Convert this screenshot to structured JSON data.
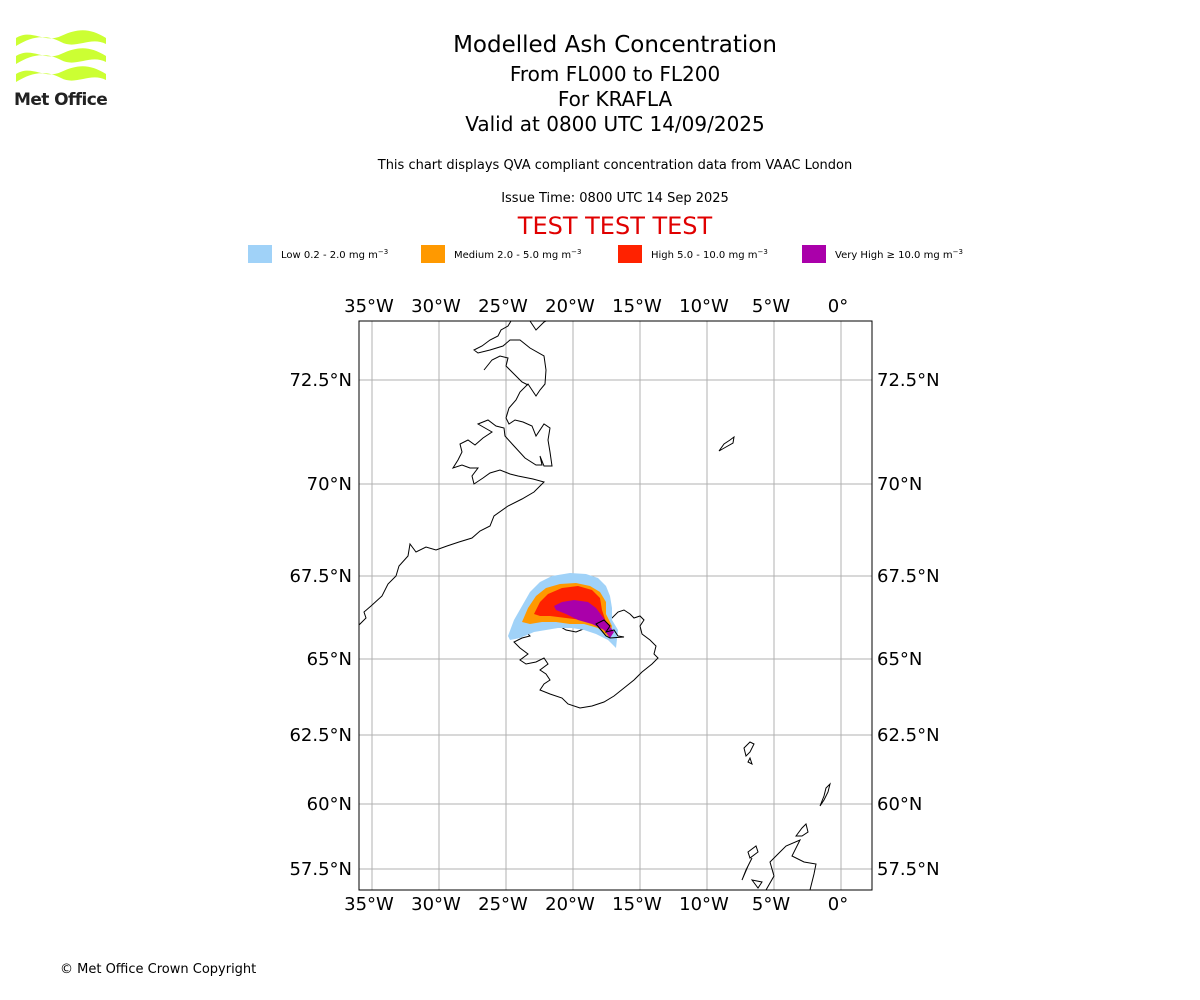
{
  "logo": {
    "text": "Met Office",
    "color": "#ccff33"
  },
  "title": {
    "main": "Modelled Ash Concentration",
    "levels": "From FL000 to FL200",
    "volcano": "For KRAFLA",
    "valid": "Valid at 0800 UTC 14/09/2025"
  },
  "description": "This chart displays QVA compliant concentration data from VAAC London",
  "issue_time": "Issue Time: 0800 UTC 14 Sep 2025",
  "test_banner": "TEST TEST TEST",
  "legend": [
    {
      "label": "Low 0.2 - 2.0 mg m",
      "unit_exp": "−3",
      "color": "#a0d2f8"
    },
    {
      "label": "Medium 2.0 - 5.0 mg m",
      "unit_exp": "−3",
      "color": "#ff9900"
    },
    {
      "label": "High 5.0 - 10.0 mg m",
      "unit_exp": "−3",
      "color": "#ff2200"
    },
    {
      "label": "Very High ≥ 10.0 mg m",
      "unit_exp": "−3",
      "color": "#aa00aa"
    }
  ],
  "map": {
    "lon_ticks": [
      "35°W",
      "30°W",
      "25°W",
      "20°W",
      "15°W",
      "10°W",
      "5°W",
      "0°"
    ],
    "lat_ticks": [
      "72.5°N",
      "70°N",
      "67.5°N",
      "65°N",
      "62.5°N",
      "60°N",
      "57.5°N"
    ],
    "lon_values": [
      -35,
      -30,
      -25,
      -20,
      -15,
      -10,
      -5,
      0
    ],
    "lat_values": [
      72.5,
      70,
      67.5,
      65,
      62.5,
      60,
      57.5
    ],
    "gridline_color": "#b0b0b0",
    "coast_color": "#000000"
  },
  "copyright": "© Met Office Crown Copyright"
}
